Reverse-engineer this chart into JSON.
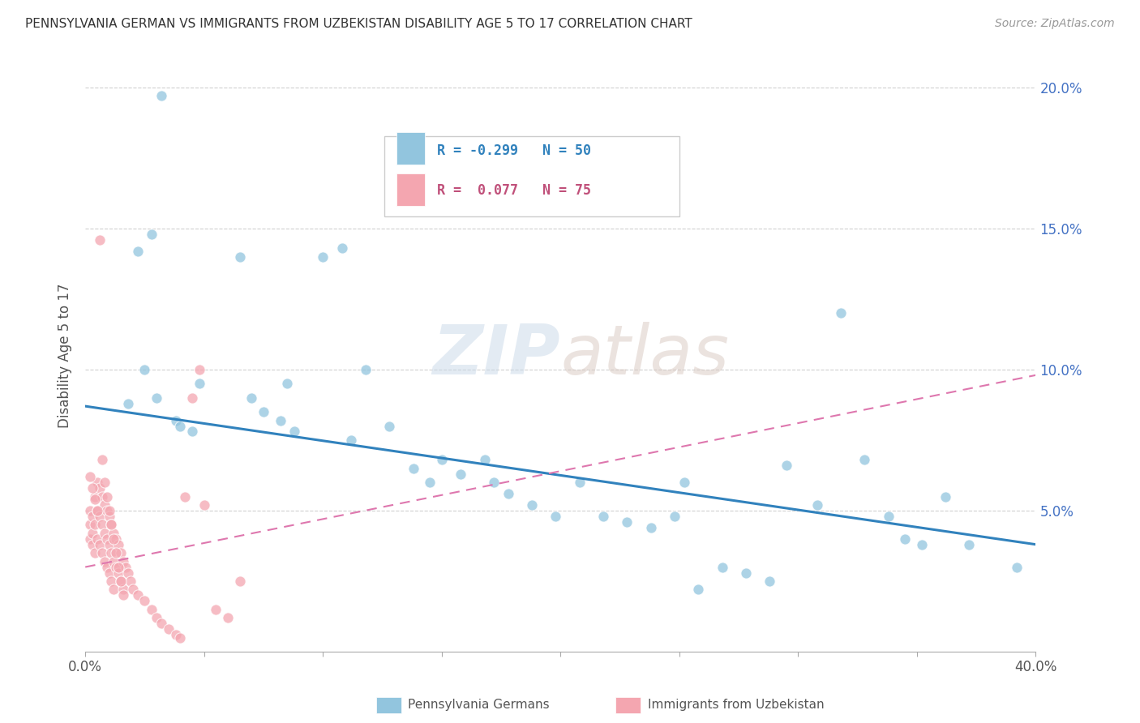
{
  "title": "PENNSYLVANIA GERMAN VS IMMIGRANTS FROM UZBEKISTAN DISABILITY AGE 5 TO 17 CORRELATION CHART",
  "source": "Source: ZipAtlas.com",
  "ylabel": "Disability Age 5 to 17",
  "xlim": [
    0.0,
    0.4
  ],
  "ylim": [
    0.0,
    0.21
  ],
  "x_ticks": [
    0.0,
    0.05,
    0.1,
    0.15,
    0.2,
    0.25,
    0.3,
    0.35,
    0.4
  ],
  "x_tick_labels_show": {
    "0.0": "0.0%",
    "0.4": "40.0%"
  },
  "y_ticks": [
    0.05,
    0.1,
    0.15,
    0.2
  ],
  "y_tick_labels_right": [
    "5.0%",
    "10.0%",
    "15.0%",
    "20.0%"
  ],
  "blue_color": "#92c5de",
  "pink_color": "#f4a6b0",
  "blue_line_color": "#3182bd",
  "pink_line_color": "#de77ae",
  "watermark_text": "ZIPatlas",
  "blue_scatter_x": [
    0.032,
    0.028,
    0.022,
    0.025,
    0.03,
    0.038,
    0.018,
    0.04,
    0.045,
    0.048,
    0.07,
    0.075,
    0.065,
    0.082,
    0.088,
    0.085,
    0.1,
    0.108,
    0.118,
    0.128,
    0.112,
    0.138,
    0.15,
    0.145,
    0.158,
    0.168,
    0.172,
    0.178,
    0.188,
    0.198,
    0.208,
    0.218,
    0.228,
    0.238,
    0.248,
    0.258,
    0.252,
    0.268,
    0.278,
    0.288,
    0.295,
    0.308,
    0.318,
    0.328,
    0.338,
    0.345,
    0.352,
    0.362,
    0.372,
    0.392
  ],
  "blue_scatter_y": [
    0.197,
    0.148,
    0.142,
    0.1,
    0.09,
    0.082,
    0.088,
    0.08,
    0.078,
    0.095,
    0.09,
    0.085,
    0.14,
    0.082,
    0.078,
    0.095,
    0.14,
    0.143,
    0.1,
    0.08,
    0.075,
    0.065,
    0.068,
    0.06,
    0.063,
    0.068,
    0.06,
    0.056,
    0.052,
    0.048,
    0.06,
    0.048,
    0.046,
    0.044,
    0.048,
    0.022,
    0.06,
    0.03,
    0.028,
    0.025,
    0.066,
    0.052,
    0.12,
    0.068,
    0.048,
    0.04,
    0.038,
    0.055,
    0.038,
    0.03
  ],
  "pink_scatter_x": [
    0.002,
    0.002,
    0.002,
    0.003,
    0.003,
    0.003,
    0.004,
    0.004,
    0.004,
    0.005,
    0.005,
    0.005,
    0.006,
    0.006,
    0.006,
    0.007,
    0.007,
    0.007,
    0.008,
    0.008,
    0.008,
    0.009,
    0.009,
    0.009,
    0.01,
    0.01,
    0.01,
    0.011,
    0.011,
    0.011,
    0.012,
    0.012,
    0.012,
    0.013,
    0.013,
    0.014,
    0.014,
    0.015,
    0.015,
    0.016,
    0.016,
    0.017,
    0.018,
    0.019,
    0.02,
    0.022,
    0.025,
    0.028,
    0.03,
    0.032,
    0.035,
    0.038,
    0.04,
    0.042,
    0.045,
    0.048,
    0.05,
    0.055,
    0.06,
    0.065,
    0.002,
    0.003,
    0.004,
    0.005,
    0.006,
    0.007,
    0.008,
    0.009,
    0.01,
    0.011,
    0.012,
    0.013,
    0.014,
    0.015,
    0.016
  ],
  "pink_scatter_y": [
    0.05,
    0.045,
    0.04,
    0.048,
    0.042,
    0.038,
    0.055,
    0.045,
    0.035,
    0.06,
    0.05,
    0.04,
    0.058,
    0.048,
    0.038,
    0.055,
    0.045,
    0.035,
    0.052,
    0.042,
    0.032,
    0.05,
    0.04,
    0.03,
    0.048,
    0.038,
    0.028,
    0.045,
    0.035,
    0.025,
    0.042,
    0.032,
    0.022,
    0.04,
    0.03,
    0.038,
    0.028,
    0.035,
    0.025,
    0.032,
    0.022,
    0.03,
    0.028,
    0.025,
    0.022,
    0.02,
    0.018,
    0.015,
    0.012,
    0.01,
    0.008,
    0.006,
    0.005,
    0.055,
    0.09,
    0.1,
    0.052,
    0.015,
    0.012,
    0.025,
    0.062,
    0.058,
    0.054,
    0.05,
    0.146,
    0.068,
    0.06,
    0.055,
    0.05,
    0.045,
    0.04,
    0.035,
    0.03,
    0.025,
    0.02
  ],
  "blue_line_x": [
    0.0,
    0.4
  ],
  "blue_line_y_start": 0.087,
  "blue_line_y_end": 0.038,
  "pink_line_x": [
    0.0,
    0.4
  ],
  "pink_line_y_start": 0.03,
  "pink_line_y_end": 0.098
}
